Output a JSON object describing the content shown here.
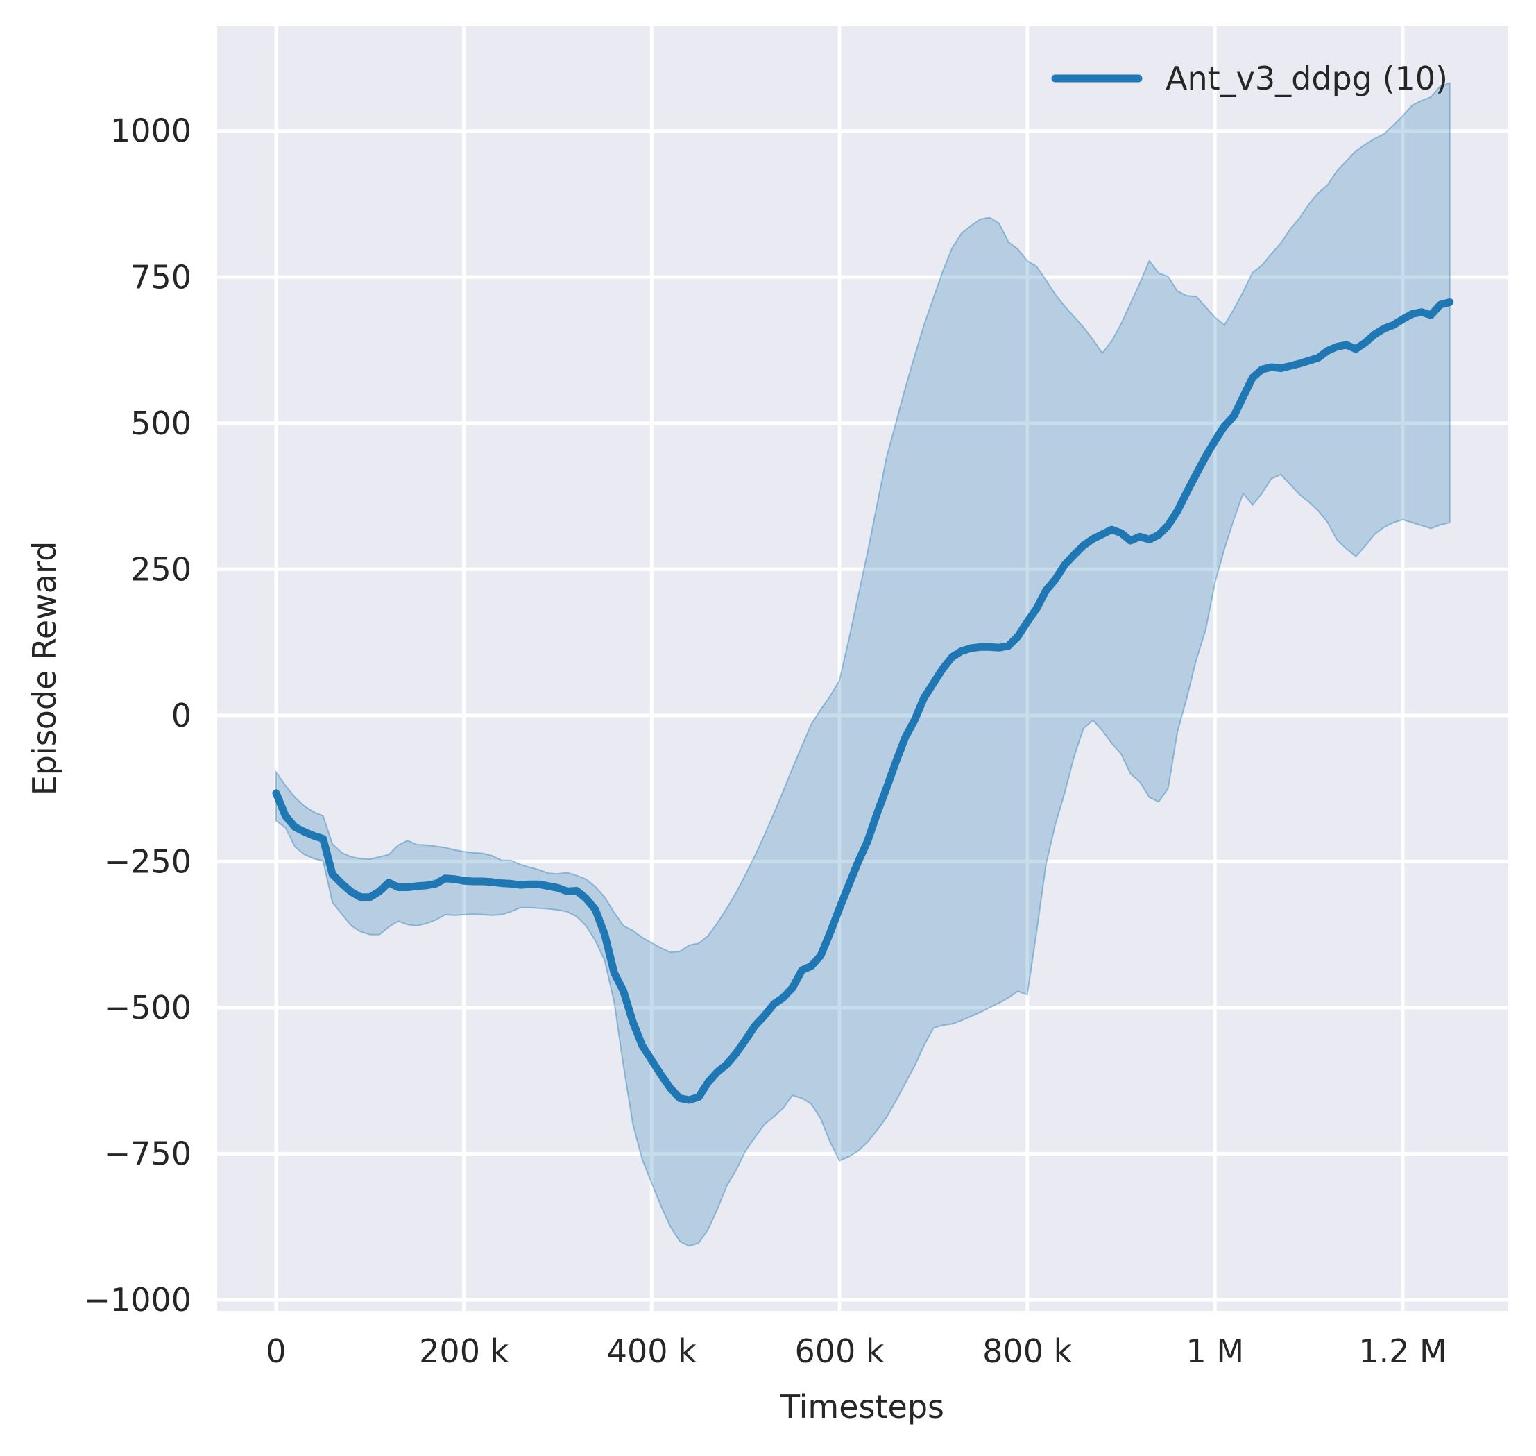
{
  "chart_data": {
    "type": "line",
    "title": "",
    "xlabel": "Timesteps",
    "ylabel": "Episode Reward",
    "grid": true,
    "legend": {
      "position": "upper right",
      "entries": [
        {
          "label": "Ant_v3_ddpg (10)",
          "color": "#1f77b4"
        }
      ]
    },
    "colors": {
      "axes_background": "#eaeaf2",
      "gridline": "#ffffff",
      "text": "#262626",
      "line": "#1f77b4",
      "band_fill": "rgba(31,119,180,0.25)",
      "band_edge": "rgba(31,119,180,0.4)"
    },
    "xlim": [
      -62800,
      1312300
    ],
    "ylim": [
      -1019,
      1179
    ],
    "x_ticks": [
      {
        "value": 0,
        "label": "0"
      },
      {
        "value": 200000,
        "label": "200 k"
      },
      {
        "value": 400000,
        "label": "400 k"
      },
      {
        "value": 600000,
        "label": "600 k"
      },
      {
        "value": 800000,
        "label": "800 k"
      },
      {
        "value": 1000000,
        "label": "1 M"
      },
      {
        "value": 1200000,
        "label": "1.2 M"
      }
    ],
    "y_ticks": [
      {
        "value": 1000,
        "label": "1000"
      },
      {
        "value": 750,
        "label": "750"
      },
      {
        "value": 500,
        "label": "500"
      },
      {
        "value": 250,
        "label": "250"
      },
      {
        "value": 0,
        "label": "0"
      },
      {
        "value": -250,
        "label": "−250"
      },
      {
        "value": -500,
        "label": "−500"
      },
      {
        "value": -750,
        "label": "−750"
      },
      {
        "value": -1000,
        "label": "−1000"
      }
    ],
    "series": [
      {
        "name": "Ant_v3_ddpg (10)",
        "color": "#1f77b4",
        "band_alpha": 0.25,
        "x_start": 0,
        "x_step": 10000,
        "x": [
          0,
          10000,
          20000,
          30000,
          40000,
          50000,
          60000,
          70000,
          80000,
          90000,
          100000,
          110000,
          120000,
          130000,
          140000,
          150000,
          160000,
          170000,
          180000,
          190000,
          200000,
          210000,
          220000,
          230000,
          240000,
          250000,
          260000,
          270000,
          280000,
          290000,
          300000,
          310000,
          320000,
          330000,
          340000,
          350000,
          360000,
          370000,
          380000,
          390000,
          400000,
          410000,
          420000,
          430000,
          440000,
          450000,
          460000,
          470000,
          480000,
          490000,
          500000,
          510000,
          520000,
          530000,
          540000,
          550000,
          560000,
          570000,
          580000,
          590000,
          600000,
          610000,
          620000,
          630000,
          640000,
          650000,
          660000,
          670000,
          680000,
          690000,
          700000,
          710000,
          720000,
          730000,
          740000,
          750000,
          760000,
          770000,
          780000,
          790000,
          800000,
          810000,
          820000,
          830000,
          840000,
          850000,
          860000,
          870000,
          880000,
          890000,
          900000,
          910000,
          920000,
          930000,
          940000,
          950000,
          960000,
          970000,
          980000,
          990000,
          1000000,
          1010000,
          1020000,
          1030000,
          1040000,
          1050000,
          1060000,
          1070000,
          1080000,
          1090000,
          1100000,
          1110000,
          1120000,
          1130000,
          1140000,
          1150000,
          1160000,
          1170000,
          1180000,
          1190000,
          1200000,
          1210000,
          1220000,
          1230000,
          1240000,
          1250000
        ],
        "mean": [
          -133,
          -172,
          -191,
          -199,
          -206,
          -211,
          -272,
          -288,
          -302,
          -311,
          -311,
          -301,
          -286,
          -294,
          -294,
          -292,
          -291,
          -288,
          -279,
          -280,
          -283,
          -284,
          -284,
          -285,
          -287,
          -288,
          -290,
          -289,
          -289,
          -292,
          -295,
          -301,
          -300,
          -313,
          -332,
          -375,
          -440,
          -472,
          -525,
          -565,
          -590,
          -615,
          -638,
          -655,
          -658,
          -653,
          -628,
          -610,
          -597,
          -578,
          -555,
          -531,
          -514,
          -494,
          -483,
          -466,
          -436,
          -429,
          -411,
          -372,
          -330,
          -290,
          -250,
          -215,
          -168,
          -125,
          -80,
          -38,
          -8,
          30,
          55,
          80,
          100,
          110,
          115,
          117,
          117,
          116,
          119,
          135,
          160,
          183,
          214,
          233,
          258,
          275,
          291,
          302,
          310,
          318,
          312,
          299,
          306,
          301,
          309,
          325,
          350,
          382,
          413,
          443,
          470,
          495,
          512,
          545,
          578,
          592,
          596,
          594,
          598,
          602,
          607,
          612,
          624,
          631,
          634,
          627,
          638,
          652,
          662,
          668,
          678,
          687,
          690,
          685,
          703,
          707
        ],
        "upper": [
          -97,
          -120,
          -140,
          -155,
          -165,
          -172,
          -220,
          -235,
          -242,
          -245,
          -246,
          -242,
          -238,
          -222,
          -214,
          -221,
          -222,
          -224,
          -226,
          -230,
          -233,
          -235,
          -236,
          -240,
          -248,
          -248,
          -255,
          -260,
          -264,
          -270,
          -271,
          -269,
          -274,
          -280,
          -293,
          -311,
          -337,
          -360,
          -368,
          -380,
          -389,
          -398,
          -405,
          -404,
          -393,
          -390,
          -377,
          -355,
          -330,
          -303,
          -272,
          -240,
          -205,
          -168,
          -130,
          -90,
          -52,
          -15,
          10,
          33,
          60,
          130,
          205,
          280,
          360,
          441,
          500,
          560,
          615,
          668,
          714,
          760,
          800,
          825,
          838,
          849,
          852,
          842,
          810,
          798,
          778,
          768,
          745,
          720,
          700,
          682,
          664,
          643,
          620,
          641,
          670,
          705,
          740,
          778,
          757,
          751,
          726,
          718,
          717,
          699,
          681,
          668,
          695,
          725,
          758,
          770,
          790,
          808,
          832,
          851,
          875,
          894,
          908,
          932,
          949,
          966,
          977,
          987,
          995,
          1010,
          1026,
          1044,
          1052,
          1058,
          1077,
          1082
        ],
        "lower": [
          -180,
          -192,
          -225,
          -238,
          -245,
          -249,
          -320,
          -340,
          -360,
          -370,
          -375,
          -375,
          -362,
          -352,
          -358,
          -360,
          -356,
          -350,
          -341,
          -342,
          -341,
          -340,
          -341,
          -342,
          -341,
          -336,
          -329,
          -329,
          -330,
          -331,
          -333,
          -336,
          -344,
          -360,
          -385,
          -420,
          -490,
          -600,
          -700,
          -760,
          -800,
          -840,
          -875,
          -900,
          -908,
          -903,
          -880,
          -845,
          -805,
          -778,
          -745,
          -722,
          -700,
          -687,
          -672,
          -650,
          -655,
          -665,
          -690,
          -730,
          -762,
          -755,
          -745,
          -730,
          -710,
          -688,
          -660,
          -630,
          -600,
          -565,
          -535,
          -530,
          -528,
          -522,
          -515,
          -508,
          -500,
          -492,
          -483,
          -472,
          -478,
          -370,
          -255,
          -186,
          -132,
          -70,
          -22,
          -8,
          -26,
          -48,
          -66,
          -100,
          -114,
          -140,
          -148,
          -125,
          -28,
          30,
          95,
          146,
          227,
          285,
          335,
          380,
          360,
          380,
          405,
          412,
          395,
          378,
          365,
          350,
          330,
          300,
          285,
          272,
          290,
          310,
          322,
          330,
          335,
          330,
          325,
          320,
          326,
          330
        ]
      }
    ]
  }
}
